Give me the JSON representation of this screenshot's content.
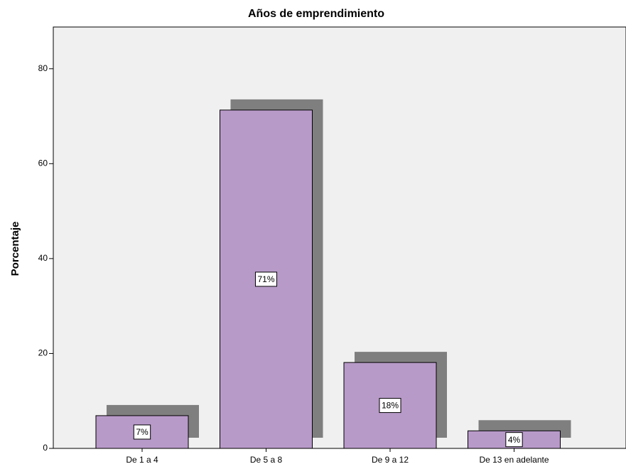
{
  "chart_data": {
    "type": "bar",
    "title": "Años de emprendimiento",
    "y_label": "Porcentaje",
    "categories": [
      "De 1 a 4",
      "De 5 a 8",
      "De 9 a 12",
      "De 13 en adelante"
    ],
    "values": [
      6.9,
      71.3,
      18.1,
      3.7
    ],
    "value_labels": [
      "7%",
      "71%",
      "18%",
      "4%"
    ],
    "color": "#b89ac9",
    "shadow_color": "#7f7f7f",
    "background": "#f0f0f0",
    "ylim": [
      0,
      88.8
    ],
    "yticks": [
      0,
      20,
      40,
      60,
      80
    ],
    "grid": false
  }
}
